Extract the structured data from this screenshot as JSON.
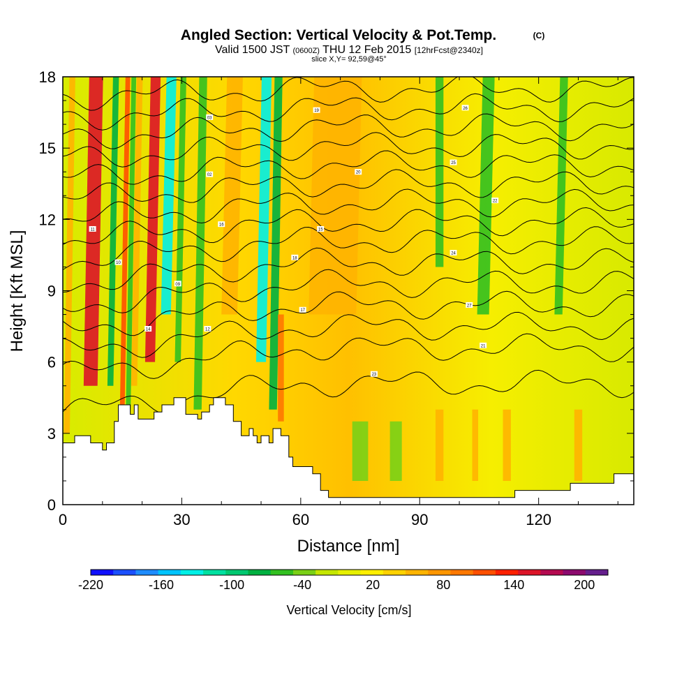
{
  "header": {
    "title": "Angled Section: Vertical Velocity & Pot.Temp.",
    "copyright": "(C)",
    "valid_prefix": "Valid 1500 JST",
    "valid_z": "(0600Z)",
    "valid_date": "THU 12 Feb 2015",
    "forecast": "[12hrFcst@2340z]",
    "slice": "slice X,Y= 92,59@45°"
  },
  "chart_data": {
    "type": "heatmap",
    "title": "Angled Section: Vertical Velocity & Pot.Temp.",
    "xlabel": "Distance [nm]",
    "ylabel": "Height [Kft MSL]",
    "xlim": [
      0,
      144
    ],
    "ylim": [
      0,
      18
    ],
    "xticks": [
      0,
      30,
      60,
      90,
      120
    ],
    "yticks": [
      0,
      3,
      6,
      9,
      12,
      15,
      18
    ],
    "xtick_labels": [
      "0",
      "30",
      "60",
      "90",
      "120"
    ],
    "ytick_labels": [
      "0",
      "3",
      "6",
      "9",
      "12",
      "15",
      "18"
    ],
    "colorbar": {
      "label": "Vertical Velocity [cm/s]",
      "min": -220,
      "max": 220,
      "step": 20,
      "tick_labels": [
        "-220",
        "-160",
        "-100",
        "-40",
        "20",
        "80",
        "140",
        "200"
      ],
      "colors": [
        "#1010ff",
        "#1b50ff",
        "#1e8cff",
        "#00c4ff",
        "#00f0e6",
        "#00e0a0",
        "#00c870",
        "#00b040",
        "#32c020",
        "#7ad016",
        "#c4e600",
        "#e6f000",
        "#ffef00",
        "#ffd200",
        "#ffb400",
        "#ff9600",
        "#ff7800",
        "#ff5000",
        "#ff2000",
        "#dc1428",
        "#b40a50",
        "#8c0a6e",
        "#641e8c"
      ]
    },
    "bands": [
      {
        "x": 1,
        "w": 1.5,
        "ymin": 3,
        "ymax": 18,
        "value": 60
      },
      {
        "x": 7,
        "w": 3.5,
        "ymin": 5,
        "ymax": 18,
        "value": 160
      },
      {
        "x": 12,
        "w": 1.5,
        "ymin": 5,
        "ymax": 18,
        "value": -80
      },
      {
        "x": 15,
        "w": 1.2,
        "ymin": 4,
        "ymax": 18,
        "value": 120
      },
      {
        "x": 16.5,
        "w": 1.2,
        "ymin": 4,
        "ymax": 18,
        "value": -60
      },
      {
        "x": 18,
        "w": 1.5,
        "ymin": 5,
        "ymax": 18,
        "value": 60
      },
      {
        "x": 22,
        "w": 2.5,
        "ymin": 6,
        "ymax": 18,
        "value": 160
      },
      {
        "x": 26,
        "w": 2.5,
        "ymin": 8,
        "ymax": 18,
        "value": -140
      },
      {
        "x": 29,
        "w": 1.5,
        "ymin": 6,
        "ymax": 18,
        "value": -60
      },
      {
        "x": 34,
        "w": 2,
        "ymin": 4,
        "ymax": 18,
        "value": -60
      },
      {
        "x": 42,
        "w": 4,
        "ymin": 8,
        "ymax": 18,
        "value": 60
      },
      {
        "x": 50,
        "w": 2.5,
        "ymin": 6,
        "ymax": 18,
        "value": -140
      },
      {
        "x": 53,
        "w": 2,
        "ymin": 4,
        "ymax": 18,
        "value": -80
      },
      {
        "x": 55,
        "w": 1.5,
        "ymin": 3.5,
        "ymax": 8,
        "value": 100
      },
      {
        "x": 68,
        "w": 12,
        "ymin": 8,
        "ymax": 18,
        "value": 60
      },
      {
        "x": 95,
        "w": 2,
        "ymin": 10,
        "ymax": 18,
        "value": -60
      },
      {
        "x": 106,
        "w": 3,
        "ymin": 8,
        "ymax": 18,
        "value": -60
      },
      {
        "x": 125,
        "w": 2,
        "ymin": 8,
        "ymax": 18,
        "value": -60
      },
      {
        "x": 95,
        "w": 2,
        "ymin": 1,
        "ymax": 4,
        "value": 60
      },
      {
        "x": 104,
        "w": 1.5,
        "ymin": 1,
        "ymax": 4,
        "value": 60
      },
      {
        "x": 112,
        "w": 2,
        "ymin": 1,
        "ymax": 4,
        "value": 60
      },
      {
        "x": 130,
        "w": 2,
        "ymin": 1,
        "ymax": 4,
        "value": 60
      },
      {
        "x": 75,
        "w": 4,
        "ymin": 1,
        "ymax": 3.5,
        "value": -40
      },
      {
        "x": 84,
        "w": 3,
        "ymin": 1,
        "ymax": 3.5,
        "value": -40
      }
    ],
    "terrain": [
      [
        0,
        2.6
      ],
      [
        3,
        2.6
      ],
      [
        3,
        2.9
      ],
      [
        7,
        2.9
      ],
      [
        7,
        2.6
      ],
      [
        10,
        2.6
      ],
      [
        10,
        2.3
      ],
      [
        11,
        2.3
      ],
      [
        11,
        2.6
      ],
      [
        13,
        2.6
      ],
      [
        13,
        3.5
      ],
      [
        14,
        3.5
      ],
      [
        14,
        4.2
      ],
      [
        17,
        4.2
      ],
      [
        17,
        3.8
      ],
      [
        18,
        3.8
      ],
      [
        18,
        4.2
      ],
      [
        19,
        4.2
      ],
      [
        19,
        3.6
      ],
      [
        23,
        3.6
      ],
      [
        23,
        3.9
      ],
      [
        25,
        3.9
      ],
      [
        25,
        4.2
      ],
      [
        28,
        4.2
      ],
      [
        28,
        4.5
      ],
      [
        31,
        4.5
      ],
      [
        31,
        3.8
      ],
      [
        34,
        3.8
      ],
      [
        34,
        3.6
      ],
      [
        35,
        3.6
      ],
      [
        35,
        3.9
      ],
      [
        37,
        3.9
      ],
      [
        37,
        4.2
      ],
      [
        38,
        4.2
      ],
      [
        38,
        4.5
      ],
      [
        41,
        4.5
      ],
      [
        41,
        4.2
      ],
      [
        43,
        4.2
      ],
      [
        43,
        3.5
      ],
      [
        45,
        3.5
      ],
      [
        45,
        2.9
      ],
      [
        47,
        2.9
      ],
      [
        47,
        3.2
      ],
      [
        48,
        3.2
      ],
      [
        48,
        2.9
      ],
      [
        49,
        2.9
      ],
      [
        49,
        2.6
      ],
      [
        50,
        2.6
      ],
      [
        50,
        2.9
      ],
      [
        52,
        2.9
      ],
      [
        52,
        2.6
      ],
      [
        53,
        2.6
      ],
      [
        53,
        3.2
      ],
      [
        55,
        3.2
      ],
      [
        55,
        2.9
      ],
      [
        57,
        2.9
      ],
      [
        57,
        2.0
      ],
      [
        58,
        2.0
      ],
      [
        58,
        1.6
      ],
      [
        63,
        1.6
      ],
      [
        63,
        1.3
      ],
      [
        65,
        1.3
      ],
      [
        65,
        0.6
      ],
      [
        67,
        0.6
      ],
      [
        67,
        0.3
      ],
      [
        114,
        0.3
      ],
      [
        114,
        0.6
      ],
      [
        128,
        0.6
      ],
      [
        128,
        0.9
      ],
      [
        139,
        0.9
      ],
      [
        139,
        1.3
      ],
      [
        144,
        1.3
      ]
    ],
    "theta_contours": {
      "base_heights": [
        5.1,
        6.6,
        7.5,
        8.4,
        9.3,
        10.2,
        11.1,
        11.9,
        12.7,
        13.5,
        14.3,
        15.1,
        15.9,
        16.7,
        17.5
      ],
      "labels": [
        {
          "x": 7.5,
          "y": 11.6,
          "text": "11"
        },
        {
          "x": 14,
          "y": 10.2,
          "text": "10"
        },
        {
          "x": 21.5,
          "y": 7.4,
          "text": "14"
        },
        {
          "x": 29,
          "y": 9.3,
          "text": "09"
        },
        {
          "x": 36.5,
          "y": 7.4,
          "text": "12"
        },
        {
          "x": 37,
          "y": 13.9,
          "text": "02"
        },
        {
          "x": 37,
          "y": 16.3,
          "text": "03"
        },
        {
          "x": 40,
          "y": 11.8,
          "text": "16"
        },
        {
          "x": 58.5,
          "y": 10.4,
          "text": "18"
        },
        {
          "x": 60.5,
          "y": 8.2,
          "text": "17"
        },
        {
          "x": 65,
          "y": 11.6,
          "text": "15"
        },
        {
          "x": 64,
          "y": 16.6,
          "text": "19"
        },
        {
          "x": 74.5,
          "y": 14.0,
          "text": "20"
        },
        {
          "x": 78.5,
          "y": 5.5,
          "text": "23"
        },
        {
          "x": 98.5,
          "y": 10.6,
          "text": "24"
        },
        {
          "x": 98.5,
          "y": 14.4,
          "text": "25"
        },
        {
          "x": 101.5,
          "y": 16.7,
          "text": "26"
        },
        {
          "x": 102.5,
          "y": 8.4,
          "text": "27"
        },
        {
          "x": 106,
          "y": 6.7,
          "text": "21"
        },
        {
          "x": 109,
          "y": 12.8,
          "text": "22"
        }
      ]
    },
    "tick_axes": {
      "xminor": 10,
      "yminor": 1
    }
  }
}
